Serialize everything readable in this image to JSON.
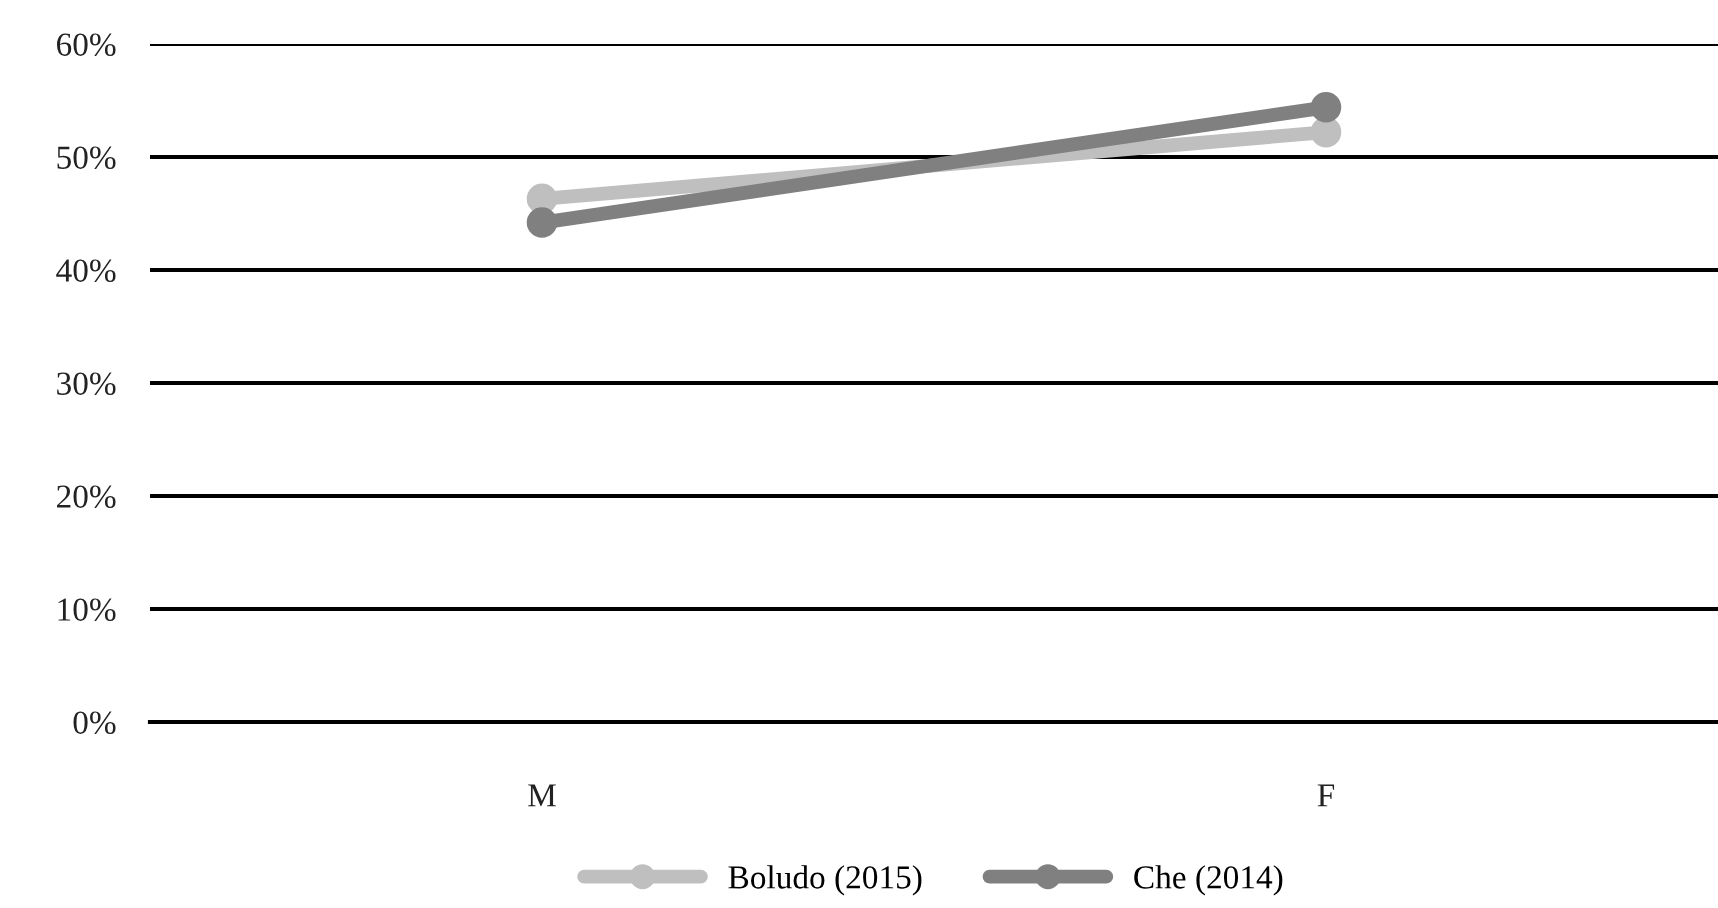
{
  "chart_data": {
    "type": "line",
    "categories": [
      "M",
      "F"
    ],
    "series": [
      {
        "name": "Boludo (2015)",
        "color": "#bfbfbf",
        "values": [
          46.3,
          52.2
        ]
      },
      {
        "name": "Che (2014)",
        "color": "#808080",
        "values": [
          44.2,
          54.4
        ]
      }
    ],
    "ylim": [
      0,
      60
    ],
    "yticks": [
      {
        "value": 0,
        "label": "0%"
      },
      {
        "value": 10,
        "label": "10%"
      },
      {
        "value": 20,
        "label": "20%"
      },
      {
        "value": 30,
        "label": "30%"
      },
      {
        "value": 40,
        "label": "40%"
      },
      {
        "value": 50,
        "label": "50%"
      },
      {
        "value": 60,
        "label": "60%"
      }
    ],
    "grid": "y",
    "legend": "bottom",
    "marker": "circle",
    "line_style": "solid"
  }
}
